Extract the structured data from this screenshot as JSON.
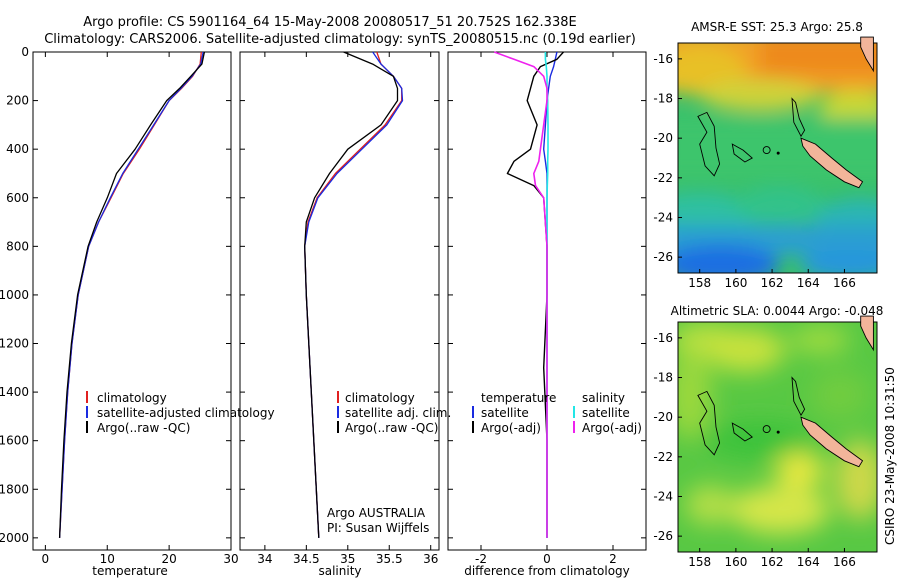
{
  "header": {
    "title_line1": "Argo profile: CS 5901164_64 15-May-2008 20080517_51 20.752S 162.338E",
    "title_line2": "Climatology: CARS2006. Satellite-adjusted climatology: synTS_20080515.nc (0.19d earlier)"
  },
  "side_label": "CSIRO 23-May-2008 10:31:50",
  "colors": {
    "climatology": "#e02020",
    "satellite": "#1a2be0",
    "argo": "#000000",
    "sat_sal": "#22e6e6",
    "argo_sal": "#ee22ee"
  },
  "chart_data": [
    {
      "type": "line",
      "id": "temperature",
      "xlabel": "temperature",
      "xlim": [
        -2,
        30
      ],
      "ylim": [
        0,
        2050
      ],
      "xticks": [
        0,
        10,
        20,
        30
      ],
      "yticks": [
        0,
        200,
        400,
        600,
        800,
        1000,
        1200,
        1400,
        1600,
        1800,
        2000
      ],
      "depth": [
        0,
        50,
        100,
        150,
        200,
        300,
        400,
        500,
        600,
        700,
        800,
        1000,
        1200,
        1400,
        1600,
        1800,
        2000
      ],
      "series": [
        {
          "name": "climatology",
          "values": [
            25.2,
            25.0,
            23.8,
            22.0,
            20.0,
            17.6,
            15.2,
            12.6,
            10.6,
            8.6,
            7.0,
            5.3,
            4.3,
            3.6,
            3.1,
            2.7,
            2.3
          ]
        },
        {
          "name": "satellite-adjusted climatology",
          "values": [
            25.5,
            25.1,
            23.7,
            21.9,
            20.0,
            17.5,
            15.0,
            12.5,
            10.5,
            8.6,
            7.0,
            5.3,
            4.3,
            3.6,
            3.1,
            2.7,
            2.3
          ]
        },
        {
          "name": "Argo(..raw -QC)",
          "values": [
            25.7,
            25.3,
            23.5,
            21.7,
            19.6,
            17.0,
            14.5,
            11.5,
            10.0,
            8.3,
            6.9,
            5.2,
            4.2,
            3.5,
            3.0,
            2.6,
            2.3
          ]
        }
      ],
      "legend": [
        "climatology",
        "satellite-adjusted climatology",
        "Argo(..raw -QC)"
      ]
    },
    {
      "type": "line",
      "id": "salinity",
      "xlabel": "salinity",
      "xlim": [
        33.7,
        36.1
      ],
      "ylim": [
        0,
        2050
      ],
      "xticks": [
        34,
        34.5,
        35,
        35.5,
        36
      ],
      "yticks": [
        0,
        200,
        400,
        600,
        800,
        1000,
        1200,
        1400,
        1600,
        1800,
        2000
      ],
      "depth": [
        0,
        50,
        100,
        150,
        200,
        300,
        400,
        500,
        600,
        700,
        800,
        1000,
        1200,
        1400,
        1600,
        1800,
        2000
      ],
      "series": [
        {
          "name": "climatology",
          "values": [
            35.35,
            35.4,
            35.55,
            35.65,
            35.65,
            35.45,
            35.15,
            34.85,
            34.63,
            34.52,
            34.48,
            34.5,
            34.53,
            34.56,
            34.59,
            34.62,
            34.65
          ]
        },
        {
          "name": "satellite adj. clim.",
          "values": [
            35.3,
            35.4,
            35.55,
            35.65,
            35.66,
            35.47,
            35.17,
            34.87,
            34.64,
            34.53,
            34.48,
            34.5,
            34.53,
            34.56,
            34.59,
            34.62,
            34.65
          ]
        },
        {
          "name": "Argo(..raw -QC)",
          "values": [
            34.95,
            35.3,
            35.55,
            35.6,
            35.6,
            35.4,
            35.0,
            34.78,
            34.6,
            34.5,
            34.48,
            34.5,
            34.53,
            34.56,
            34.59,
            34.62,
            34.65
          ]
        }
      ],
      "legend": [
        "climatology",
        "satellite adj. clim.",
        "Argo(..raw -QC)"
      ],
      "annotation": [
        "Argo AUSTRALIA",
        "PI: Susan Wijffels"
      ]
    },
    {
      "type": "line",
      "id": "difference",
      "xlabel": "difference from climatology",
      "xlim": [
        -3,
        3
      ],
      "ylim": [
        0,
        2050
      ],
      "xticks": [
        -2,
        0,
        2
      ],
      "yticks": [
        0,
        200,
        400,
        600,
        800,
        1000,
        1200,
        1400,
        1600,
        1800,
        2000
      ],
      "depth": [
        0,
        30,
        60,
        100,
        150,
        200,
        300,
        400,
        450,
        500,
        550,
        600,
        800,
        1000,
        1300,
        1600,
        2000
      ],
      "series": [
        {
          "name": "temperature satellite",
          "values": [
            0.3,
            0.25,
            0.2,
            0.1,
            0.05,
            0.0,
            -0.05,
            -0.1,
            -0.05,
            0.0,
            0.0,
            0.0,
            0.0,
            0.0,
            0.0,
            0.0,
            0.0
          ]
        },
        {
          "name": "temperature Argo(-adj)",
          "values": [
            0.5,
            0.3,
            -0.2,
            -0.4,
            -0.5,
            -0.6,
            -0.3,
            -0.5,
            -1.0,
            -1.2,
            -0.4,
            -0.1,
            0.0,
            0.0,
            -0.1,
            0.0,
            0.0
          ]
        },
        {
          "name": "salinity satellite",
          "values": [
            -0.05,
            -0.05,
            -0.02,
            0.0,
            0.0,
            0.02,
            0.03,
            0.03,
            0.02,
            0.02,
            0.01,
            0.0,
            0.0,
            0.0,
            0.0,
            0.0,
            0.0
          ]
        },
        {
          "name": "salinity Argo(-adj)",
          "values": [
            -1.6,
            -1.0,
            -0.4,
            -0.1,
            0.0,
            0.0,
            -0.1,
            -0.2,
            -0.25,
            -0.4,
            -0.35,
            -0.1,
            0.0,
            0.0,
            0.0,
            0.0,
            0.0
          ]
        }
      ],
      "legend_headers": [
        "temperature",
        "salinity"
      ],
      "legend": [
        "satellite",
        "Argo(-adj)",
        "satellite",
        "Argo(-adj)"
      ]
    },
    {
      "type": "heatmap",
      "id": "sst",
      "title": "AMSR-E SST: 25.3 Argo: 25.8",
      "xticks": [
        158,
        160,
        162,
        164,
        166
      ],
      "yticks": [
        -16,
        -18,
        -20,
        -22,
        -24,
        -26
      ],
      "xlim": [
        156.8,
        167.8
      ],
      "ylim": [
        -26.8,
        -15.2
      ],
      "float_position": [
        162.338,
        -20.752
      ]
    },
    {
      "type": "heatmap",
      "id": "sla",
      "title": "Altimetric SLA: 0.0044 Argo: -0.048",
      "xticks": [
        158,
        160,
        162,
        164,
        166
      ],
      "yticks": [
        -16,
        -18,
        -20,
        -22,
        -24,
        -26
      ],
      "xlim": [
        156.8,
        167.8
      ],
      "ylim": [
        -26.8,
        -15.2
      ],
      "float_position": [
        162.338,
        -20.752
      ]
    }
  ]
}
